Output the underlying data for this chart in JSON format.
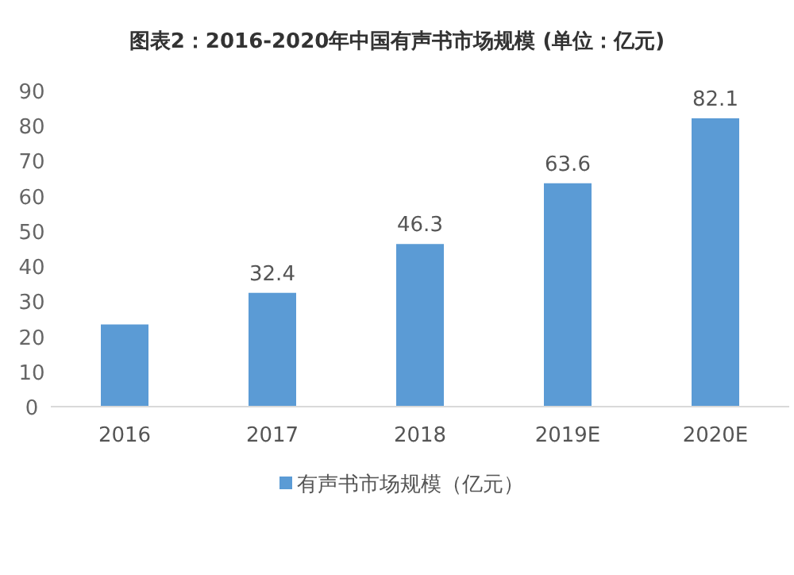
{
  "chart_data": {
    "type": "bar",
    "title": "图表2：2016-2020年中国有声书市场规模 (单位：亿元)",
    "categories": [
      "2016",
      "2017",
      "2018",
      "2019E",
      "2020E"
    ],
    "series": [
      {
        "name": "有声书市场规模（亿元）",
        "color": "#5b9bd5",
        "values": [
          23.4,
          32.4,
          46.3,
          63.6,
          82.1
        ],
        "value_labels": [
          null,
          "32.4",
          "46.3",
          "63.6",
          "82.1"
        ]
      }
    ],
    "ylim": [
      0,
      90
    ],
    "yticks": [
      0,
      10,
      20,
      30,
      40,
      50,
      60,
      70,
      80,
      90
    ],
    "legend": "bottom"
  }
}
